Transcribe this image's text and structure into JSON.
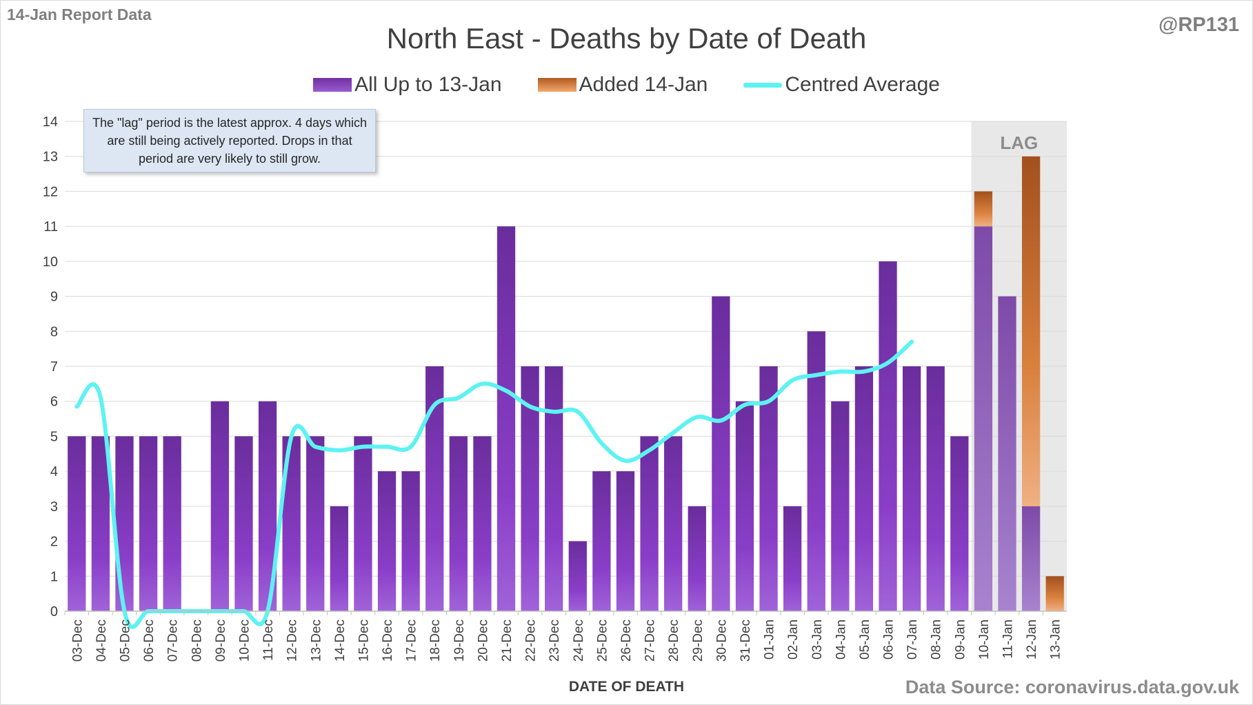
{
  "header": {
    "report_label": "14-Jan Report Data",
    "handle": "@RP131"
  },
  "footer": {
    "source": "Data Source: coronavirus.data.gov.uk"
  },
  "note": "The \"lag\" period is the latest approx. 4 days which are still being actively reported.  Drops in that period are very likely to still grow.",
  "colors": {
    "base": "#7030a0",
    "added": "#e07b39",
    "average": "#5ef2f2",
    "lag_shade": "#e8e8e8"
  },
  "chart_data": {
    "type": "bar",
    "title": "North East - Deaths by Date of Death",
    "xlabel": "DATE OF DEATH",
    "ylabel": "",
    "ylim": [
      0,
      14
    ],
    "yticks": [
      0,
      1,
      2,
      3,
      4,
      5,
      6,
      7,
      8,
      9,
      10,
      11,
      12,
      13,
      14
    ],
    "grid": true,
    "legend_position": "top",
    "stacked": true,
    "categories": [
      "03-Dec",
      "04-Dec",
      "05-Dec",
      "06-Dec",
      "07-Dec",
      "08-Dec",
      "09-Dec",
      "10-Dec",
      "11-Dec",
      "12-Dec",
      "13-Dec",
      "14-Dec",
      "15-Dec",
      "16-Dec",
      "17-Dec",
      "18-Dec",
      "19-Dec",
      "20-Dec",
      "21-Dec",
      "22-Dec",
      "23-Dec",
      "24-Dec",
      "25-Dec",
      "26-Dec",
      "27-Dec",
      "28-Dec",
      "29-Dec",
      "30-Dec",
      "31-Dec",
      "01-Jan",
      "02-Jan",
      "03-Jan",
      "04-Jan",
      "05-Jan",
      "06-Jan",
      "07-Jan",
      "08-Jan",
      "09-Jan",
      "10-Jan",
      "11-Jan",
      "12-Jan",
      "13-Jan"
    ],
    "series": [
      {
        "name": "All Up to 13-Jan",
        "values": [
          5,
          5,
          5,
          5,
          5,
          0,
          6,
          5,
          6,
          5,
          5,
          3,
          5,
          4,
          4,
          7,
          5,
          5,
          11,
          7,
          7,
          2,
          4,
          4,
          5,
          5,
          3,
          9,
          6,
          7,
          3,
          8,
          6,
          7,
          10,
          7,
          7,
          5,
          11,
          9,
          3,
          0
        ]
      },
      {
        "name": "Added 14-Jan",
        "values": [
          0,
          0,
          0,
          0,
          0,
          0,
          0,
          0,
          0,
          0,
          0,
          0,
          0,
          0,
          0,
          0,
          0,
          0,
          0,
          0,
          0,
          0,
          0,
          0,
          0,
          0,
          0,
          0,
          0,
          0,
          0,
          0,
          0,
          0,
          0,
          0,
          0,
          0,
          1,
          0,
          10,
          1
        ]
      },
      {
        "name": "Centred Average",
        "type": "line",
        "values": [
          5.85,
          6.1,
          0,
          0,
          0,
          0,
          0,
          0,
          0,
          5.0,
          4.7,
          4.6,
          4.7,
          4.7,
          4.7,
          5.9,
          6.1,
          6.5,
          6.3,
          5.85,
          5.7,
          5.7,
          4.8,
          4.3,
          4.6,
          5.1,
          5.55,
          5.45,
          5.9,
          6.0,
          6.6,
          6.75,
          6.85,
          6.85,
          7.1,
          7.7,
          null,
          null,
          null,
          null,
          null,
          null
        ]
      }
    ],
    "annotations": [
      {
        "text": "LAG",
        "categories": [
          "10-Jan",
          "11-Jan",
          "12-Jan",
          "13-Jan"
        ]
      }
    ]
  }
}
